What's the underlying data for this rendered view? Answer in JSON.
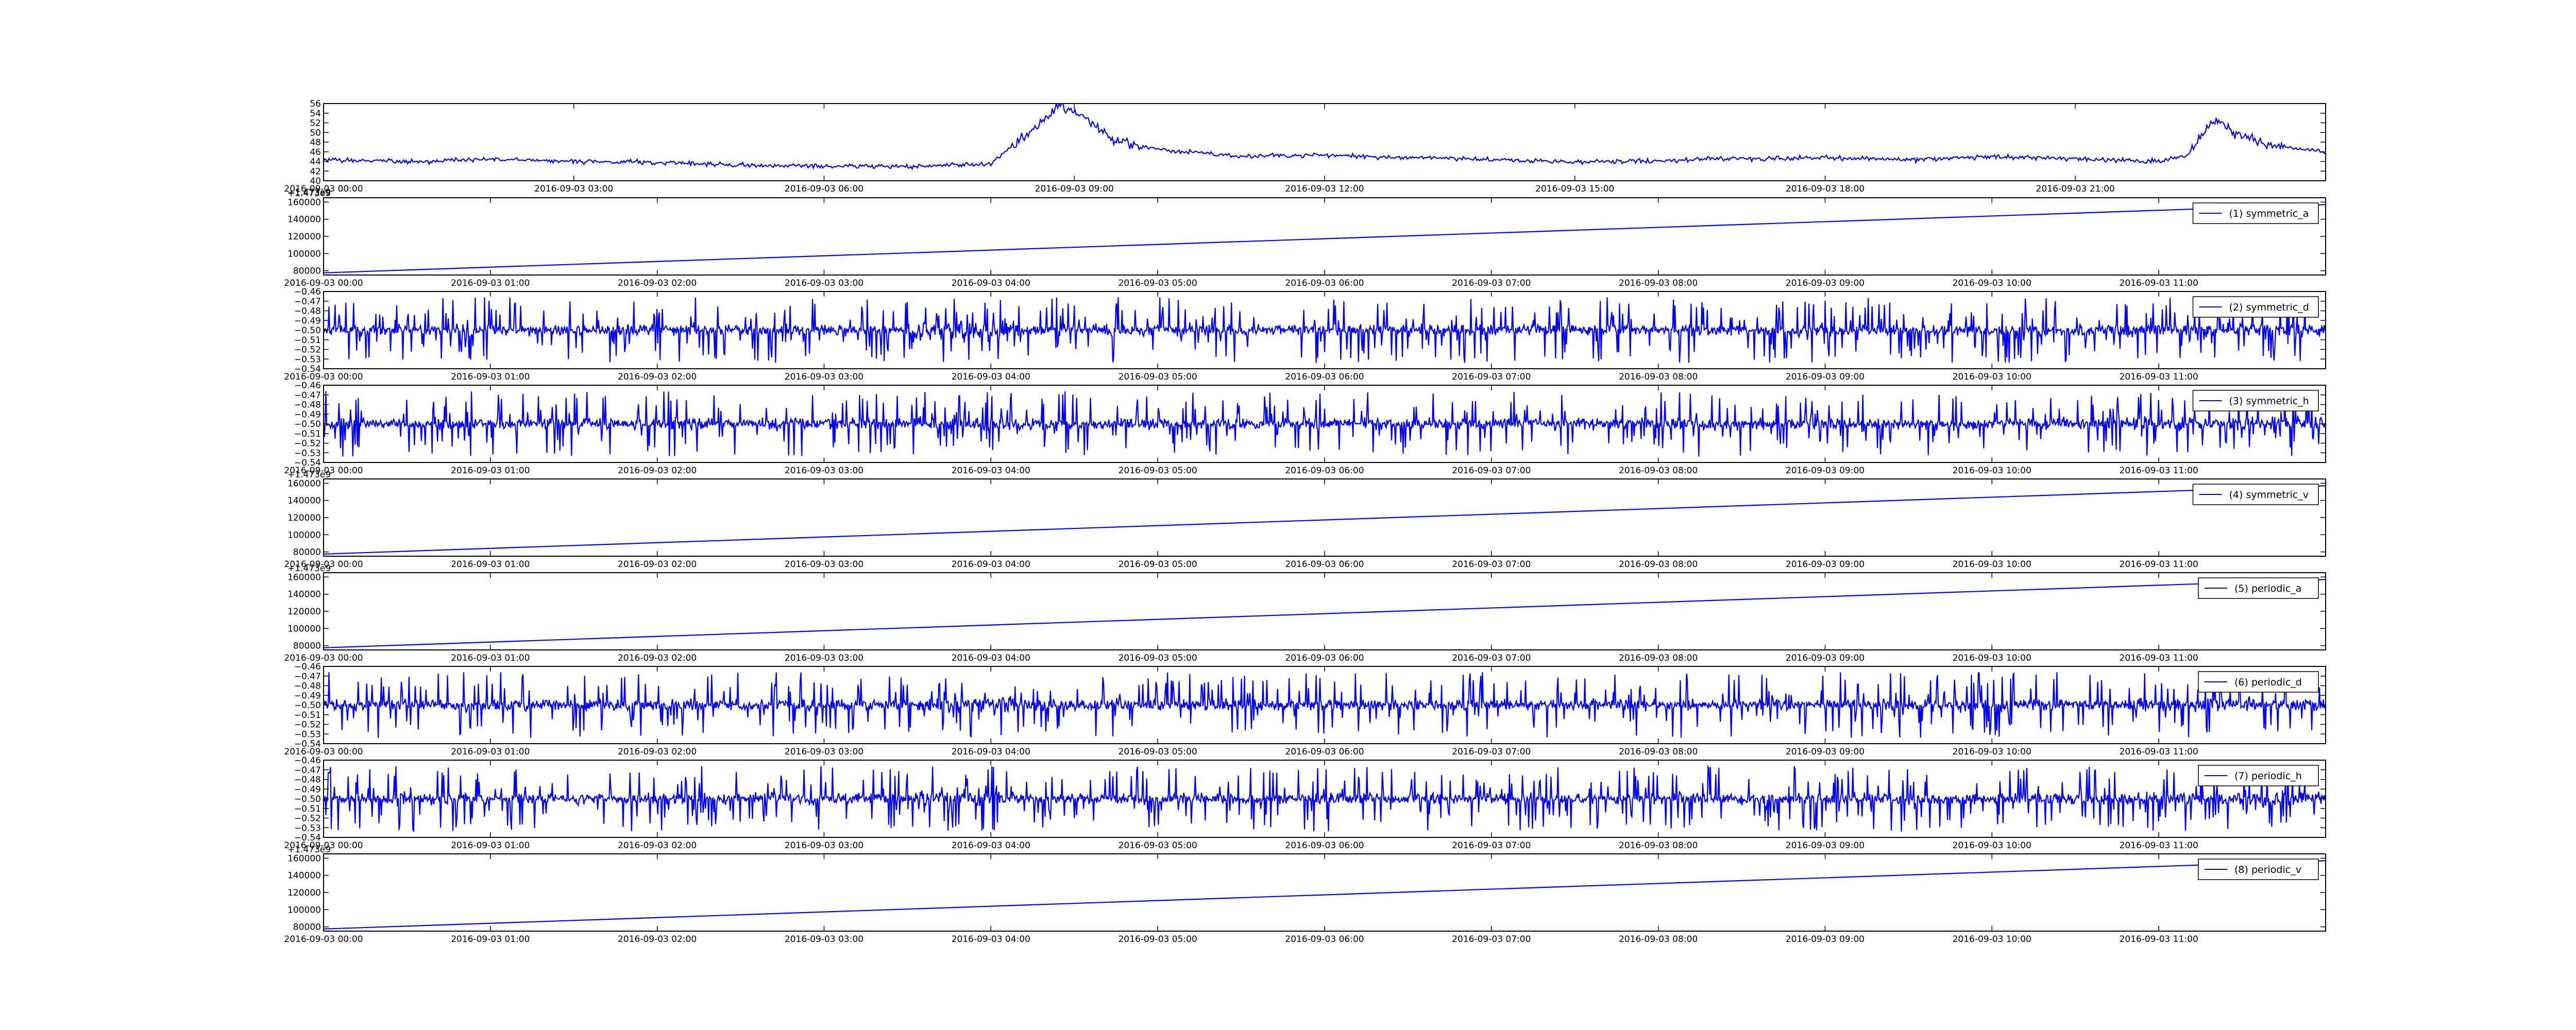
{
  "colors": {
    "line": "#0000ff",
    "axes": "#000000",
    "background": "#ffffff"
  },
  "chart_data": [
    {
      "type": "line",
      "title": "",
      "xlabel": "",
      "ylabel": "",
      "grid": false,
      "xlim": [
        "2016-09-03 00:00",
        "2016-09-04 00:00"
      ],
      "xticks": [
        "2016-09-03 03:00",
        "2016-09-03 06:00",
        "2016-09-03 09:00",
        "2016-09-03 12:00",
        "2016-09-03 15:00",
        "2016-09-03 18:00",
        "2016-09-03 21:00"
      ],
      "xtick_labels": [
        "2016-09-03 03:00",
        "2016-09-03 06:00",
        "2016-09-03 09:00",
        "2016-09-03 12:00",
        "2016-09-03 15:00",
        "2016-09-03 18:00",
        "2016-09-03 21:00"
      ],
      "xtick_partial_label": "2016-09-03 00:00",
      "offset_label": "+1.473e9",
      "ylim": [
        40,
        56
      ],
      "yticks": [
        40,
        42,
        44,
        46,
        48,
        50,
        52,
        54,
        56
      ],
      "series": [
        {
          "x": [
            "2016-09-03 00:00",
            "2016-09-03 01:00",
            "2016-09-03 02:00",
            "2016-09-03 03:00",
            "2016-09-03 04:00",
            "2016-09-03 05:00",
            "2016-09-03 06:00",
            "2016-09-03 07:00",
            "2016-09-03 08:00",
            "2016-09-03 08:50",
            "2016-09-03 09:10",
            "2016-09-03 09:30",
            "2016-09-03 10:00",
            "2016-09-03 11:00",
            "2016-09-03 12:00",
            "2016-09-03 13:00",
            "2016-09-03 14:00",
            "2016-09-03 15:00",
            "2016-09-03 16:00",
            "2016-09-03 17:00",
            "2016-09-03 18:00",
            "2016-09-03 19:00",
            "2016-09-03 20:00",
            "2016-09-03 21:00",
            "2016-09-03 22:00",
            "2016-09-03 22:20",
            "2016-09-03 22:40",
            "2016-09-03 23:00",
            "2016-09-03 23:30",
            "2016-09-04 00:00"
          ],
          "values": [
            44.3,
            44.0,
            44.5,
            44.0,
            43.8,
            43.2,
            43.0,
            42.9,
            43.5,
            55.5,
            52.5,
            48.0,
            46.5,
            45.0,
            45.3,
            44.8,
            44.5,
            43.8,
            44.2,
            44.6,
            44.8,
            44.3,
            45.0,
            44.6,
            44.0,
            45.2,
            53.0,
            49.0,
            47.0,
            46.0
          ]
        }
      ]
    },
    {
      "type": "line",
      "title": "",
      "xlabel": "",
      "ylabel": "",
      "grid": false,
      "legend_position": "top-right",
      "xlim": [
        "2016-09-03 00:00",
        "2016-09-03 12:00"
      ],
      "xtick_labels": [
        "2016-09-03 00:00",
        "2016-09-03 01:00",
        "2016-09-03 02:00",
        "2016-09-03 03:00",
        "2016-09-03 04:00",
        "2016-09-03 05:00",
        "2016-09-03 06:00",
        "2016-09-03 07:00",
        "2016-09-03 08:00",
        "2016-09-03 09:00",
        "2016-09-03 10:00",
        "2016-09-03 11:00"
      ],
      "offset_label": "+1.473e9",
      "ylim": [
        75000,
        165000
      ],
      "yticks": [
        80000,
        100000,
        120000,
        140000,
        160000
      ],
      "series": [
        {
          "name": "(1) symmetric_a",
          "x": [
            "2016-09-03 00:00",
            "2016-09-03 12:00"
          ],
          "values": [
            77500,
            157000
          ]
        }
      ]
    },
    {
      "type": "line",
      "title": "",
      "xlabel": "",
      "ylabel": "",
      "grid": false,
      "legend_position": "top-right",
      "xlim": [
        "2016-09-03 00:00",
        "2016-09-03 12:00"
      ],
      "xtick_labels": [
        "2016-09-03 00:00",
        "2016-09-03 01:00",
        "2016-09-03 02:00",
        "2016-09-03 03:00",
        "2016-09-03 04:00",
        "2016-09-03 05:00",
        "2016-09-03 06:00",
        "2016-09-03 07:00",
        "2016-09-03 08:00",
        "2016-09-03 09:00",
        "2016-09-03 10:00",
        "2016-09-03 11:00"
      ],
      "ylim": [
        -0.54,
        -0.46
      ],
      "yticks": [
        -0.54,
        -0.53,
        -0.52,
        -0.51,
        -0.5,
        -0.49,
        -0.48,
        -0.47,
        -0.46
      ],
      "ytick_labels": [
        "−0.54",
        "−0.53",
        "−0.52",
        "−0.51",
        "−0.50",
        "−0.49",
        "−0.48",
        "−0.47",
        "−0.46"
      ],
      "series": [
        {
          "name": "(2) symmetric_d",
          "center": -0.5,
          "typical_amplitude": 0.012,
          "peak_min": -0.535,
          "peak_max": -0.464
        }
      ]
    },
    {
      "type": "line",
      "title": "",
      "xlabel": "",
      "ylabel": "",
      "grid": false,
      "legend_position": "top-right",
      "xlim": [
        "2016-09-03 00:00",
        "2016-09-03 12:00"
      ],
      "xtick_labels": [
        "2016-09-03 00:00",
        "2016-09-03 01:00",
        "2016-09-03 02:00",
        "2016-09-03 03:00",
        "2016-09-03 04:00",
        "2016-09-03 05:00",
        "2016-09-03 06:00",
        "2016-09-03 07:00",
        "2016-09-03 08:00",
        "2016-09-03 09:00",
        "2016-09-03 10:00",
        "2016-09-03 11:00"
      ],
      "ylim": [
        -0.54,
        -0.46
      ],
      "yticks": [
        -0.54,
        -0.53,
        -0.52,
        -0.51,
        -0.5,
        -0.49,
        -0.48,
        -0.47,
        -0.46
      ],
      "ytick_labels": [
        "−0.54",
        "−0.53",
        "−0.52",
        "−0.51",
        "−0.50",
        "−0.49",
        "−0.48",
        "−0.47",
        "−0.46"
      ],
      "series": [
        {
          "name": "(3) symmetric_h",
          "center": -0.5,
          "typical_amplitude": 0.012,
          "peak_min": -0.535,
          "peak_max": -0.464
        }
      ]
    },
    {
      "type": "line",
      "title": "",
      "xlabel": "",
      "ylabel": "",
      "grid": false,
      "legend_position": "top-right",
      "xlim": [
        "2016-09-03 00:00",
        "2016-09-03 12:00"
      ],
      "xtick_labels": [
        "2016-09-03 00:00",
        "2016-09-03 01:00",
        "2016-09-03 02:00",
        "2016-09-03 03:00",
        "2016-09-03 04:00",
        "2016-09-03 05:00",
        "2016-09-03 06:00",
        "2016-09-03 07:00",
        "2016-09-03 08:00",
        "2016-09-03 09:00",
        "2016-09-03 10:00",
        "2016-09-03 11:00"
      ],
      "offset_label": "+1.473e9",
      "ylim": [
        75000,
        165000
      ],
      "yticks": [
        80000,
        100000,
        120000,
        140000,
        160000
      ],
      "series": [
        {
          "name": "(4) symmetric_v",
          "x": [
            "2016-09-03 00:00",
            "2016-09-03 12:00"
          ],
          "values": [
            77500,
            157000
          ]
        }
      ]
    },
    {
      "type": "line",
      "title": "",
      "xlabel": "",
      "ylabel": "",
      "grid": false,
      "legend_position": "top-right",
      "xlim": [
        "2016-09-03 00:00",
        "2016-09-03 12:00"
      ],
      "xtick_labels": [
        "2016-09-03 00:00",
        "2016-09-03 01:00",
        "2016-09-03 02:00",
        "2016-09-03 03:00",
        "2016-09-03 04:00",
        "2016-09-03 05:00",
        "2016-09-03 06:00",
        "2016-09-03 07:00",
        "2016-09-03 08:00",
        "2016-09-03 09:00",
        "2016-09-03 10:00",
        "2016-09-03 11:00"
      ],
      "offset_label": "+1.473e9",
      "ylim": [
        75000,
        165000
      ],
      "yticks": [
        80000,
        100000,
        120000,
        140000,
        160000
      ],
      "series": [
        {
          "name": "(5) periodic_a",
          "x": [
            "2016-09-03 00:00",
            "2016-09-03 12:00"
          ],
          "values": [
            77500,
            157000
          ]
        }
      ]
    },
    {
      "type": "line",
      "title": "",
      "xlabel": "",
      "ylabel": "",
      "grid": false,
      "legend_position": "top-right",
      "xlim": [
        "2016-09-03 00:00",
        "2016-09-03 12:00"
      ],
      "xtick_labels": [
        "2016-09-03 00:00",
        "2016-09-03 01:00",
        "2016-09-03 02:00",
        "2016-09-03 03:00",
        "2016-09-03 04:00",
        "2016-09-03 05:00",
        "2016-09-03 06:00",
        "2016-09-03 07:00",
        "2016-09-03 08:00",
        "2016-09-03 09:00",
        "2016-09-03 10:00",
        "2016-09-03 11:00"
      ],
      "ylim": [
        -0.54,
        -0.46
      ],
      "yticks": [
        -0.54,
        -0.53,
        -0.52,
        -0.51,
        -0.5,
        -0.49,
        -0.48,
        -0.47,
        -0.46
      ],
      "ytick_labels": [
        "−0.54",
        "−0.53",
        "−0.52",
        "−0.51",
        "−0.50",
        "−0.49",
        "−0.48",
        "−0.47",
        "−0.46"
      ],
      "series": [
        {
          "name": "(6) periodic_d",
          "center": -0.5,
          "typical_amplitude": 0.012,
          "peak_min": -0.535,
          "peak_max": -0.464
        }
      ]
    },
    {
      "type": "line",
      "title": "",
      "xlabel": "",
      "ylabel": "",
      "grid": false,
      "legend_position": "top-right",
      "xlim": [
        "2016-09-03 00:00",
        "2016-09-03 12:00"
      ],
      "xtick_labels": [
        "2016-09-03 00:00",
        "2016-09-03 01:00",
        "2016-09-03 02:00",
        "2016-09-03 03:00",
        "2016-09-03 04:00",
        "2016-09-03 05:00",
        "2016-09-03 06:00",
        "2016-09-03 07:00",
        "2016-09-03 08:00",
        "2016-09-03 09:00",
        "2016-09-03 10:00",
        "2016-09-03 11:00"
      ],
      "ylim": [
        -0.54,
        -0.46
      ],
      "yticks": [
        -0.54,
        -0.53,
        -0.52,
        -0.51,
        -0.5,
        -0.49,
        -0.48,
        -0.47,
        -0.46
      ],
      "ytick_labels": [
        "−0.54",
        "−0.53",
        "−0.52",
        "−0.51",
        "−0.50",
        "−0.49",
        "−0.48",
        "−0.47",
        "−0.46"
      ],
      "series": [
        {
          "name": "(7) periodic_h",
          "center": -0.5,
          "typical_amplitude": 0.012,
          "peak_min": -0.535,
          "peak_max": -0.464
        }
      ]
    },
    {
      "type": "line",
      "title": "",
      "xlabel": "",
      "ylabel": "",
      "grid": false,
      "legend_position": "top-right",
      "xlim": [
        "2016-09-03 00:00",
        "2016-09-03 12:00"
      ],
      "xtick_labels": [
        "2016-09-03 00:00",
        "2016-09-03 01:00",
        "2016-09-03 02:00",
        "2016-09-03 03:00",
        "2016-09-03 04:00",
        "2016-09-03 05:00",
        "2016-09-03 06:00",
        "2016-09-03 07:00",
        "2016-09-03 08:00",
        "2016-09-03 09:00",
        "2016-09-03 10:00",
        "2016-09-03 11:00"
      ],
      "offset_label": "+1.473e9",
      "ylim": [
        75000,
        165000
      ],
      "yticks": [
        80000,
        100000,
        120000,
        140000,
        160000
      ],
      "series": [
        {
          "name": "(8) periodic_v",
          "x": [
            "2016-09-03 00:00",
            "2016-09-03 12:00"
          ],
          "values": [
            77500,
            157000
          ]
        }
      ]
    }
  ]
}
